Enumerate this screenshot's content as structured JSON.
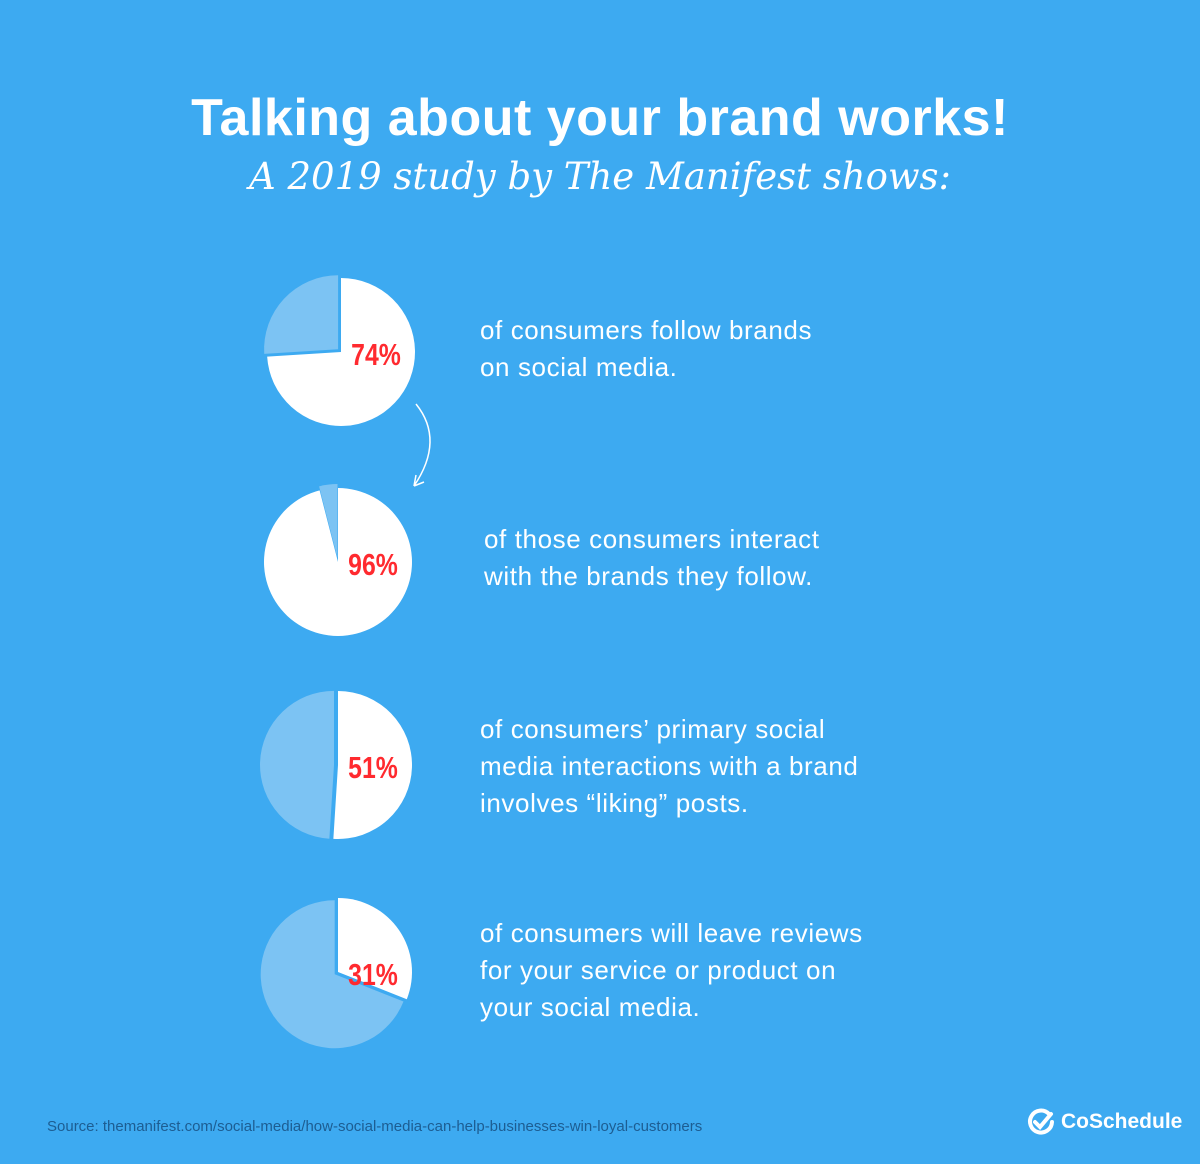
{
  "title": "Talking about your brand works!",
  "subtitle": "A 2019 study by The Manifest shows:",
  "colors": {
    "background": "#3daaf1",
    "slice": "#ffffff",
    "remainder": "#7cc3f3",
    "percent_text": "#ff2a2f"
  },
  "chart_data": [
    {
      "type": "pie",
      "values": [
        74,
        26
      ],
      "label": "74%",
      "text": [
        "of consumers follow brands",
        "on social media."
      ]
    },
    {
      "type": "pie",
      "values": [
        96,
        4
      ],
      "label": "96%",
      "text": [
        "of those consumers interact",
        "with the brands they follow."
      ]
    },
    {
      "type": "pie",
      "values": [
        51,
        49
      ],
      "label": "51%",
      "text": [
        "of consumers’ primary social",
        "media interactions with a brand",
        "involves “liking” posts."
      ]
    },
    {
      "type": "pie",
      "values": [
        31,
        69
      ],
      "label": "31%",
      "text": [
        "of consumers will leave reviews",
        "for your service or product on",
        "your social media."
      ]
    }
  ],
  "source": "Source: themanifest.com/social-media/how-social-media-can-help-businesses-win-loyal-customers",
  "logo": "CoSchedule"
}
